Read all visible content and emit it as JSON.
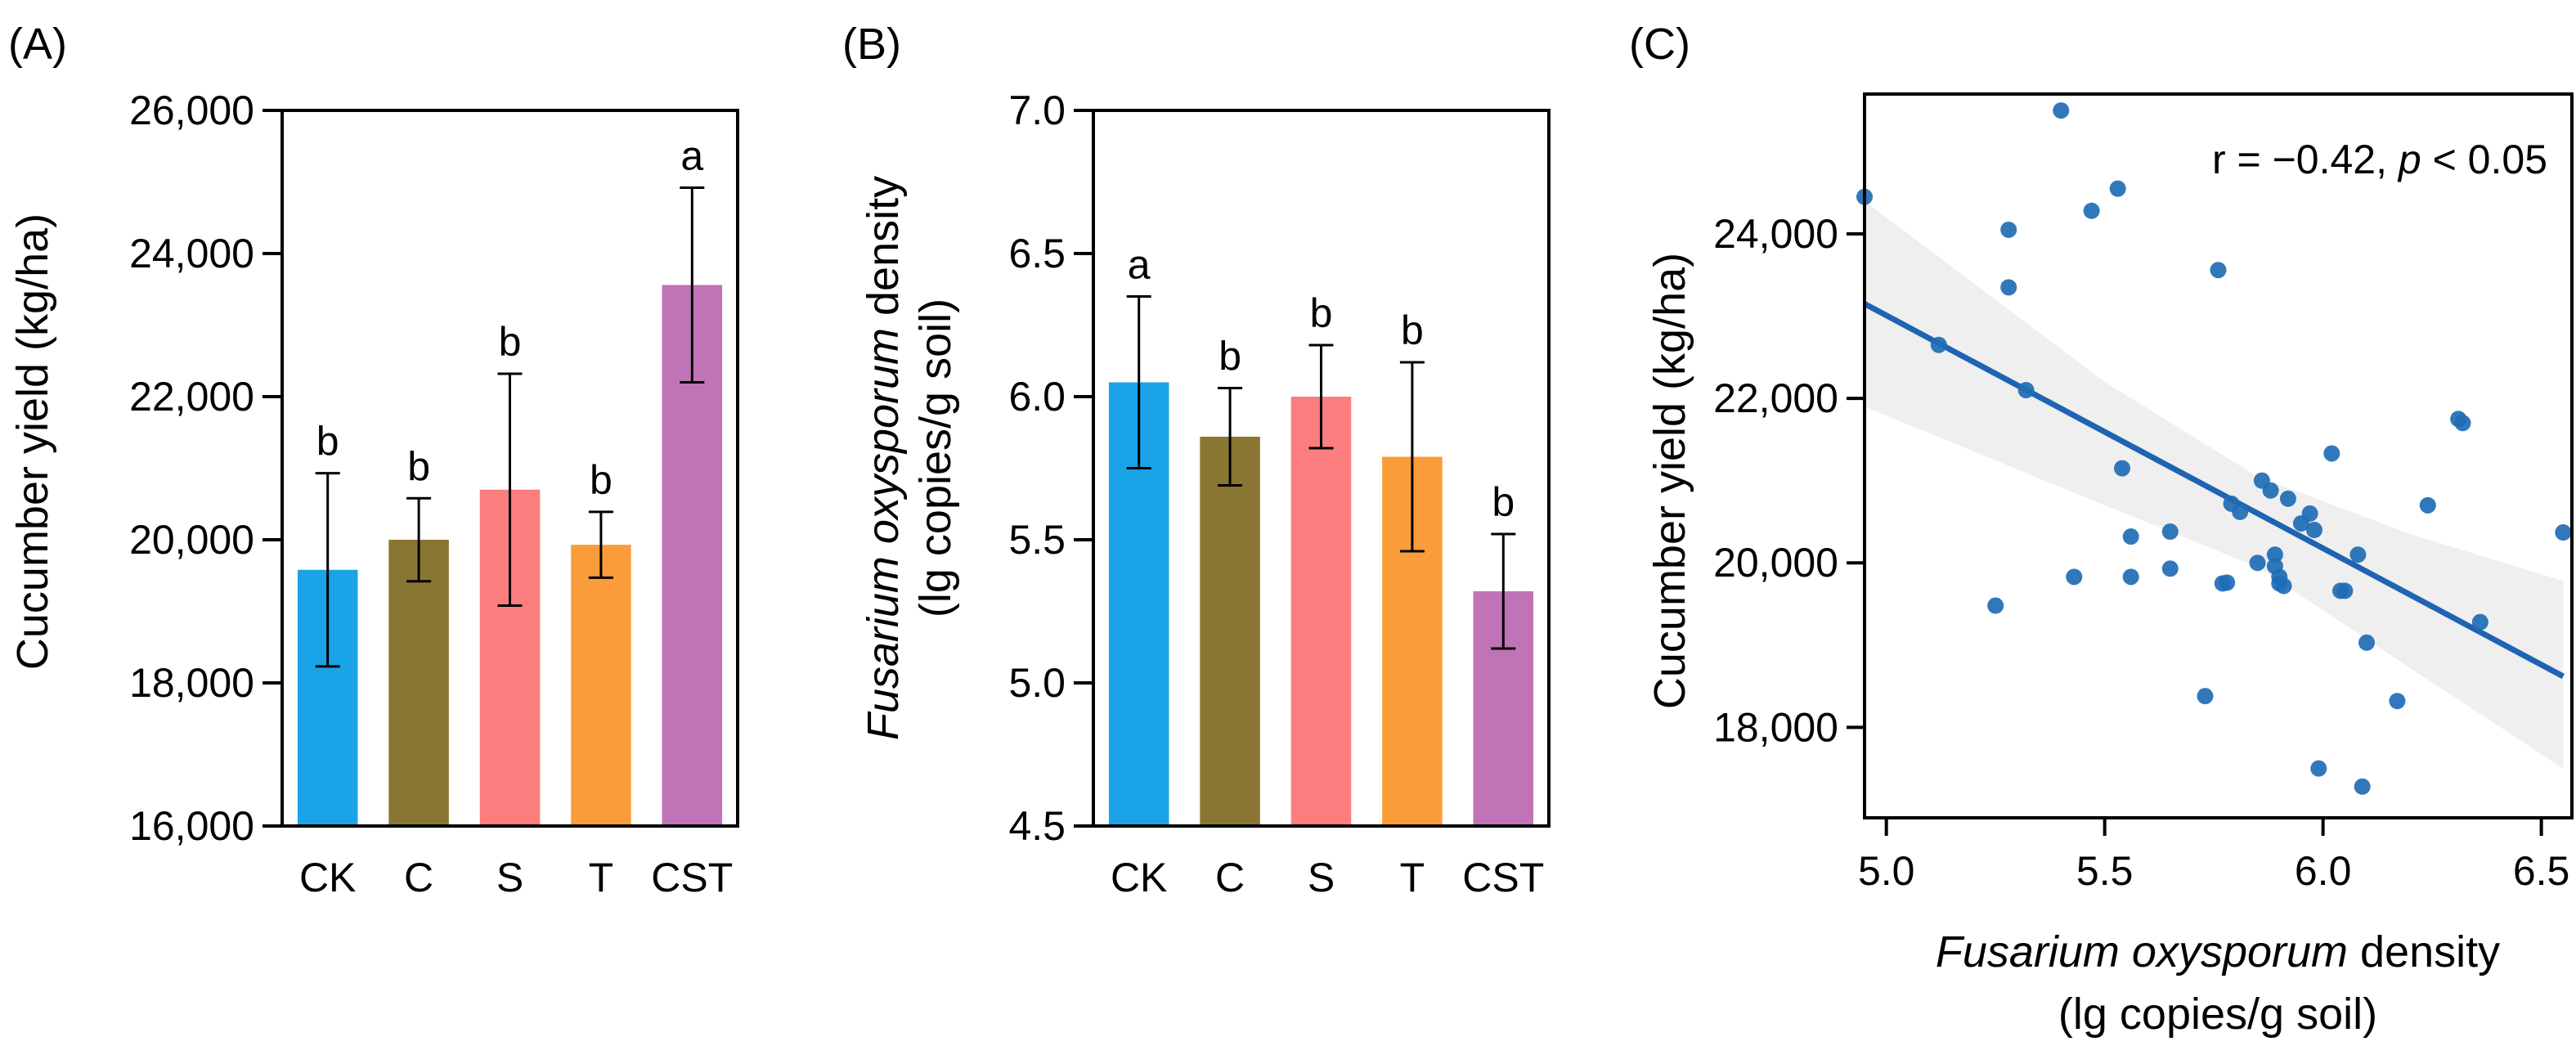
{
  "chart_data": [
    {
      "panel": "(A)",
      "type": "bar",
      "title": "",
      "xlabel": "",
      "ylabel": "Cucumber yield (kg/ha)",
      "categories": [
        "CK",
        "C",
        "S",
        "T",
        "CST"
      ],
      "values": [
        19580,
        20000,
        20700,
        19930,
        23560
      ],
      "errors": [
        1350,
        580,
        1620,
        460,
        1360
      ],
      "significance": [
        "b",
        "b",
        "b",
        "b",
        "a"
      ],
      "colors": [
        "#1aa3e6",
        "#8a7633",
        "#fb7d7d",
        "#fb9c3a",
        "#c073b6"
      ],
      "ylim": [
        16000,
        26000
      ],
      "yticks": [
        16000,
        18000,
        20000,
        22000,
        24000,
        26000
      ],
      "ytick_labels": [
        "16,000",
        "18,000",
        "20,000",
        "22,000",
        "24,000",
        "26,000"
      ]
    },
    {
      "panel": "(B)",
      "type": "bar",
      "title": "",
      "xlabel": "",
      "ylabel_italic": "Fusarium oxysporum",
      "ylabel_rest": " density",
      "ylabel_line2": "(lg copies/g soil)",
      "categories": [
        "CK",
        "C",
        "S",
        "T",
        "CST"
      ],
      "values": [
        6.05,
        5.86,
        6.0,
        5.79,
        5.32
      ],
      "errors": [
        0.3,
        0.17,
        0.18,
        0.33,
        0.2
      ],
      "significance": [
        "a",
        "b",
        "b",
        "b",
        "b"
      ],
      "colors": [
        "#1aa3e6",
        "#8a7633",
        "#fb7d7d",
        "#fb9c3a",
        "#c073b6"
      ],
      "ylim": [
        4.5,
        7.0
      ],
      "yticks": [
        4.5,
        5.0,
        5.5,
        6.0,
        6.5,
        7.0
      ],
      "ytick_labels": [
        "4.5",
        "5.0",
        "5.5",
        "6.0",
        "6.5",
        "7.0"
      ]
    },
    {
      "panel": "(C)",
      "type": "scatter",
      "title": "",
      "xlabel_italic": "Fusarium oxysporum",
      "xlabel_rest": " density",
      "xlabel_line2": "(lg copies/g soil)",
      "ylabel": "Cucumber yield (kg/ha)",
      "annotation_prefix": "r = −0.42, ",
      "annotation_italic": "p",
      "annotation_suffix": " < 0.05",
      "xlim": [
        4.95,
        6.57
      ],
      "ylim": [
        16900,
        25700
      ],
      "xticks": [
        5.0,
        5.5,
        6.0,
        6.5
      ],
      "xtick_labels": [
        "5.0",
        "5.5",
        "6.0",
        "6.5"
      ],
      "yticks": [
        18000,
        20000,
        22000,
        24000
      ],
      "ytick_labels": [
        "18,000",
        "20,000",
        "22,000",
        "24,000"
      ],
      "point_color": "#1f6db5",
      "line_color": "#1f63b3",
      "band_color": "#e8e8ea",
      "fit": {
        "x": [
          4.95,
          6.55
        ],
        "y": [
          23150,
          18620
        ]
      },
      "band": {
        "x": [
          4.95,
          5.5,
          5.85,
          6.2,
          6.55
        ],
        "upper": [
          24400,
          22200,
          21050,
          20350,
          19780
        ],
        "lower": [
          21900,
          20700,
          19950,
          18720,
          17500
        ]
      },
      "points": [
        [
          4.95,
          24450
        ],
        [
          5.12,
          22650
        ],
        [
          5.25,
          19480
        ],
        [
          5.28,
          24050
        ],
        [
          5.28,
          23350
        ],
        [
          5.32,
          22100
        ],
        [
          5.4,
          25500
        ],
        [
          5.43,
          19830
        ],
        [
          5.47,
          24280
        ],
        [
          5.53,
          24550
        ],
        [
          5.54,
          21150
        ],
        [
          5.56,
          19830
        ],
        [
          5.56,
          20320
        ],
        [
          5.65,
          19930
        ],
        [
          5.65,
          20380
        ],
        [
          5.73,
          18380
        ],
        [
          5.76,
          23560
        ],
        [
          5.77,
          19750
        ],
        [
          5.78,
          19760
        ],
        [
          5.79,
          20720
        ],
        [
          5.81,
          20620
        ],
        [
          5.85,
          20000
        ],
        [
          5.86,
          21000
        ],
        [
          5.88,
          20880
        ],
        [
          5.89,
          20100
        ],
        [
          5.89,
          19960
        ],
        [
          5.9,
          19830
        ],
        [
          5.9,
          19750
        ],
        [
          5.91,
          19720
        ],
        [
          5.92,
          20780
        ],
        [
          5.95,
          20480
        ],
        [
          5.97,
          20600
        ],
        [
          5.98,
          20400
        ],
        [
          5.99,
          17500
        ],
        [
          6.02,
          21330
        ],
        [
          6.04,
          19660
        ],
        [
          6.05,
          19660
        ],
        [
          6.08,
          20100
        ],
        [
          6.09,
          17280
        ],
        [
          6.1,
          19030
        ],
        [
          6.17,
          18320
        ],
        [
          6.24,
          20700
        ],
        [
          6.31,
          21750
        ],
        [
          6.32,
          21700
        ],
        [
          6.36,
          19280
        ],
        [
          6.55,
          20370
        ]
      ]
    }
  ]
}
